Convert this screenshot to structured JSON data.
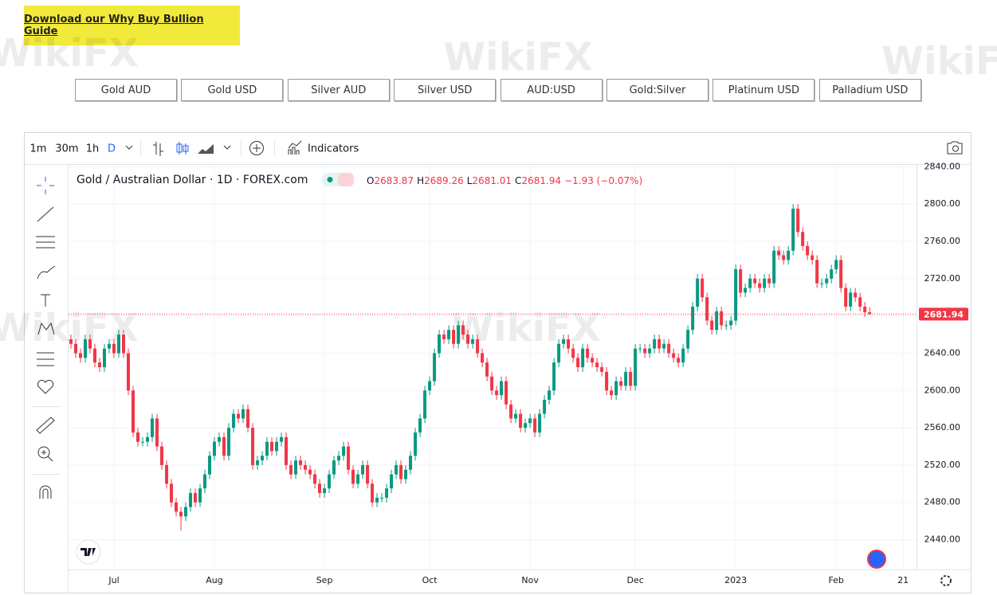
{
  "header": {
    "guide_link": "Download our Why Buy Bullion Guide"
  },
  "tabs": [
    "Gold AUD",
    "Gold USD",
    "Silver AUD",
    "Silver USD",
    "AUD:USD",
    "Gold:Silver",
    "Platinum USD",
    "Palladium USD"
  ],
  "toolbar": {
    "intervals": [
      "1m",
      "30m",
      "1h",
      "D"
    ],
    "indicators": "Indicators"
  },
  "watermark": "WikiFX",
  "chart_data": {
    "type": "candlestick",
    "title": "Gold / Australian Dollar · 1D · FOREX.com",
    "ohlc_labels": [
      "O",
      "H",
      "L",
      "C"
    ],
    "change_label": "−1.93 (−0.07%)",
    "up_color": "#089981",
    "down_color": "#f23645",
    "grid": true,
    "xlim": [
      -0.5,
      176.8
    ],
    "xticks": [
      {
        "value": 9,
        "label": "Jul"
      },
      {
        "value": 30,
        "label": "Aug"
      },
      {
        "value": 53,
        "label": "Sep"
      },
      {
        "value": 75,
        "label": "Oct"
      },
      {
        "value": 96,
        "label": "Nov"
      },
      {
        "value": 118,
        "label": "Dec"
      },
      {
        "value": 139,
        "label": "2023"
      },
      {
        "value": 160,
        "label": "Feb"
      },
      {
        "value": 174,
        "label": "21"
      }
    ],
    "ylim": [
      2408,
      2842
    ],
    "yticks": [
      {
        "value": 2440,
        "label": "2440.00"
      },
      {
        "value": 2480,
        "label": "2480.00"
      },
      {
        "value": 2520,
        "label": "2520.00"
      },
      {
        "value": 2560,
        "label": "2560.00"
      },
      {
        "value": 2600,
        "label": "2600.00"
      },
      {
        "value": 2640,
        "label": "2640.00"
      },
      {
        "value": 2680,
        "label": "2680.00"
      },
      {
        "value": 2720,
        "label": "2720.00"
      },
      {
        "value": 2760,
        "label": "2760.00"
      },
      {
        "value": 2800,
        "label": "2800.00"
      },
      {
        "value": 2840,
        "label": "2840.00"
      }
    ],
    "open": [
      2655,
      2650,
      2640,
      2635,
      2655,
      2645,
      2630,
      2625,
      2645,
      2650,
      2640,
      2660,
      2640,
      2600,
      2555,
      2545,
      2545,
      2550,
      2570,
      2540,
      2520,
      2500,
      2480,
      2470,
      2465,
      2475,
      2490,
      2480,
      2495,
      2510,
      2530,
      2545,
      2550,
      2530,
      2560,
      2575,
      2570,
      2580,
      2560,
      2520,
      2525,
      2530,
      2545,
      2535,
      2545,
      2550,
      2520,
      2510,
      2525,
      2520,
      2515,
      2510,
      2500,
      2490,
      2495,
      2510,
      2525,
      2530,
      2540,
      2515,
      2500,
      2510,
      2520,
      2500,
      2480,
      2485,
      2485,
      2495,
      2510,
      2520,
      2505,
      2515,
      2530,
      2555,
      2570,
      2600,
      2610,
      2640,
      2660,
      2655,
      2665,
      2650,
      2670,
      2660,
      2650,
      2655,
      2640,
      2630,
      2615,
      2600,
      2595,
      2610,
      2585,
      2570,
      2575,
      2560,
      2565,
      2570,
      2555,
      2575,
      2590,
      2600,
      2630,
      2650,
      2655,
      2645,
      2635,
      2625,
      2645,
      2635,
      2630,
      2625,
      2620,
      2600,
      2595,
      2610,
      2605,
      2620,
      2605,
      2645,
      2645,
      2640,
      2645,
      2655,
      2645,
      2650,
      2640,
      2635,
      2630,
      2645,
      2665,
      2690,
      2720,
      2700,
      2675,
      2665,
      2685,
      2670,
      2670,
      2675,
      2730,
      2705,
      2710,
      2720,
      2715,
      2710,
      2720,
      2715,
      2750,
      2745,
      2740,
      2750,
      2795,
      2770,
      2755,
      2745,
      2740,
      2715,
      2715,
      2720,
      2730,
      2740,
      2710,
      2690,
      2705,
      2700,
      2690,
      2683.87
    ],
    "high": [
      2660,
      2655,
      2645,
      2660,
      2660,
      2650,
      2635,
      2650,
      2655,
      2655,
      2665,
      2665,
      2645,
      2605,
      2560,
      2550,
      2555,
      2575,
      2575,
      2545,
      2525,
      2505,
      2485,
      2475,
      2480,
      2495,
      2495,
      2500,
      2515,
      2535,
      2550,
      2555,
      2555,
      2565,
      2580,
      2580,
      2585,
      2585,
      2565,
      2530,
      2535,
      2550,
      2550,
      2550,
      2555,
      2555,
      2525,
      2530,
      2530,
      2525,
      2520,
      2515,
      2505,
      2500,
      2515,
      2530,
      2535,
      2545,
      2545,
      2520,
      2515,
      2525,
      2525,
      2505,
      2490,
      2490,
      2500,
      2515,
      2525,
      2525,
      2520,
      2535,
      2560,
      2575,
      2605,
      2615,
      2645,
      2665,
      2665,
      2670,
      2670,
      2675,
      2675,
      2665,
      2660,
      2660,
      2645,
      2635,
      2620,
      2605,
      2615,
      2615,
      2590,
      2580,
      2580,
      2570,
      2575,
      2575,
      2580,
      2595,
      2605,
      2635,
      2655,
      2660,
      2660,
      2650,
      2640,
      2650,
      2650,
      2640,
      2635,
      2630,
      2625,
      2605,
      2615,
      2615,
      2625,
      2625,
      2650,
      2650,
      2650,
      2650,
      2660,
      2660,
      2655,
      2655,
      2645,
      2640,
      2650,
      2670,
      2695,
      2725,
      2725,
      2705,
      2680,
      2690,
      2690,
      2675,
      2680,
      2735,
      2735,
      2715,
      2725,
      2725,
      2720,
      2725,
      2725,
      2755,
      2755,
      2750,
      2755,
      2800,
      2800,
      2775,
      2760,
      2750,
      2745,
      2720,
      2725,
      2735,
      2745,
      2745,
      2715,
      2710,
      2710,
      2705,
      2695,
      2689.26
    ],
    "low": [
      2645,
      2635,
      2630,
      2630,
      2640,
      2625,
      2620,
      2620,
      2640,
      2635,
      2635,
      2635,
      2595,
      2550,
      2540,
      2540,
      2540,
      2545,
      2535,
      2515,
      2495,
      2475,
      2465,
      2450,
      2460,
      2470,
      2475,
      2475,
      2490,
      2505,
      2525,
      2540,
      2525,
      2525,
      2555,
      2565,
      2565,
      2555,
      2515,
      2515,
      2520,
      2525,
      2530,
      2530,
      2540,
      2515,
      2505,
      2505,
      2515,
      2510,
      2505,
      2495,
      2485,
      2485,
      2490,
      2505,
      2520,
      2525,
      2510,
      2495,
      2495,
      2505,
      2495,
      2475,
      2475,
      2480,
      2480,
      2490,
      2505,
      2500,
      2500,
      2510,
      2525,
      2550,
      2565,
      2595,
      2605,
      2635,
      2650,
      2650,
      2645,
      2645,
      2655,
      2645,
      2645,
      2635,
      2625,
      2610,
      2595,
      2590,
      2590,
      2580,
      2565,
      2565,
      2555,
      2555,
      2560,
      2550,
      2550,
      2570,
      2585,
      2595,
      2625,
      2645,
      2640,
      2630,
      2620,
      2620,
      2630,
      2625,
      2620,
      2615,
      2595,
      2590,
      2590,
      2600,
      2600,
      2600,
      2600,
      2640,
      2635,
      2635,
      2640,
      2640,
      2640,
      2635,
      2630,
      2625,
      2625,
      2640,
      2660,
      2685,
      2695,
      2670,
      2660,
      2660,
      2665,
      2665,
      2665,
      2670,
      2700,
      2700,
      2705,
      2710,
      2705,
      2705,
      2710,
      2710,
      2740,
      2735,
      2735,
      2745,
      2765,
      2750,
      2740,
      2735,
      2710,
      2710,
      2710,
      2715,
      2725,
      2705,
      2685,
      2685,
      2695,
      2685,
      2679,
      2681.01
    ],
    "close": [
      2650,
      2640,
      2635,
      2655,
      2645,
      2630,
      2625,
      2645,
      2650,
      2640,
      2660,
      2640,
      2600,
      2555,
      2545,
      2545,
      2550,
      2570,
      2540,
      2520,
      2500,
      2480,
      2470,
      2465,
      2475,
      2490,
      2480,
      2495,
      2510,
      2530,
      2545,
      2550,
      2530,
      2560,
      2575,
      2570,
      2580,
      2560,
      2520,
      2525,
      2530,
      2545,
      2535,
      2545,
      2550,
      2520,
      2510,
      2525,
      2520,
      2515,
      2510,
      2500,
      2490,
      2495,
      2510,
      2525,
      2530,
      2540,
      2515,
      2500,
      2510,
      2520,
      2500,
      2480,
      2485,
      2485,
      2495,
      2510,
      2520,
      2505,
      2515,
      2530,
      2555,
      2570,
      2600,
      2610,
      2640,
      2660,
      2655,
      2665,
      2650,
      2670,
      2660,
      2650,
      2655,
      2640,
      2630,
      2615,
      2600,
      2595,
      2610,
      2585,
      2570,
      2575,
      2560,
      2565,
      2570,
      2555,
      2575,
      2590,
      2600,
      2630,
      2650,
      2655,
      2645,
      2635,
      2625,
      2645,
      2635,
      2630,
      2625,
      2620,
      2600,
      2595,
      2610,
      2605,
      2620,
      2605,
      2645,
      2645,
      2640,
      2645,
      2655,
      2645,
      2650,
      2640,
      2635,
      2630,
      2645,
      2665,
      2690,
      2720,
      2700,
      2675,
      2665,
      2685,
      2670,
      2670,
      2675,
      2730,
      2705,
      2710,
      2720,
      2715,
      2710,
      2720,
      2715,
      2750,
      2745,
      2740,
      2750,
      2795,
      2770,
      2755,
      2745,
      2740,
      2715,
      2715,
      2720,
      2730,
      2740,
      2710,
      2690,
      2705,
      2700,
      2690,
      2683.87,
      2681.94
    ]
  }
}
